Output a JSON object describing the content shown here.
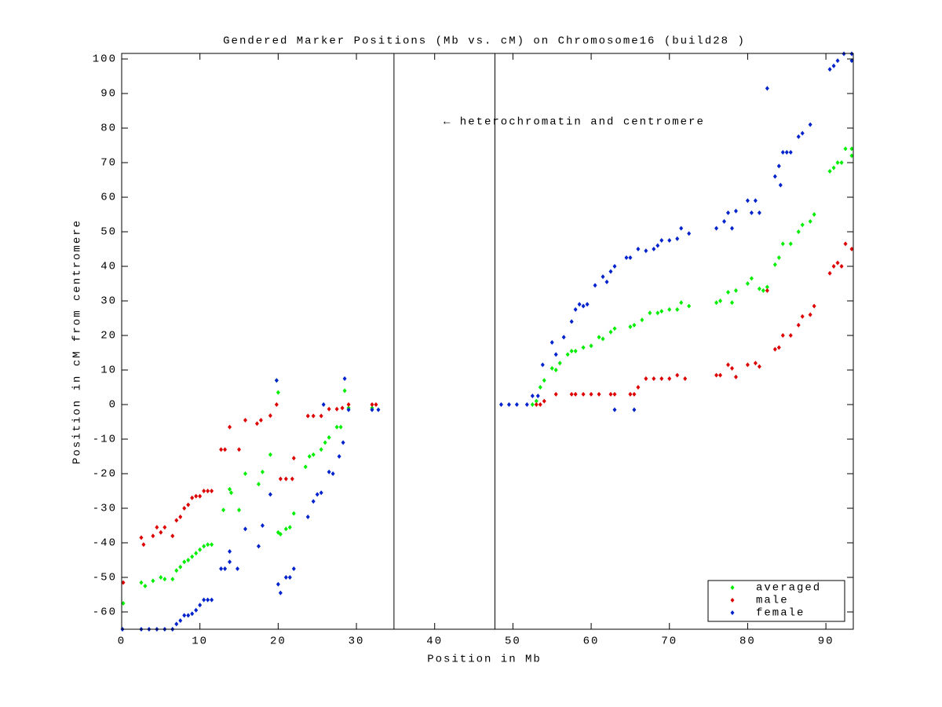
{
  "chart_data": {
    "type": "scatter",
    "title": "Gendered Marker Positions (Mb vs. cM) on Chromosome16 (build28 )",
    "xlabel": "Position in Mb",
    "ylabel": "Position in cM from centromere",
    "annotation": "← heterochromatin and centromere",
    "vlines": [
      34.8,
      47.7
    ],
    "xlim": [
      0,
      93.5
    ],
    "ylim": [
      -65,
      101.6
    ],
    "xticks": [
      0,
      10,
      20,
      30,
      40,
      50,
      60,
      70,
      80,
      90
    ],
    "yticks": [
      -60,
      -50,
      -40,
      -30,
      -20,
      -10,
      0,
      10,
      20,
      30,
      40,
      50,
      60,
      70,
      80,
      90,
      100
    ],
    "legend": "lower right",
    "series": [
      {
        "name": "averaged",
        "color": "#00ee00",
        "x": [
          0.2,
          2.5,
          3,
          4,
          5,
          5.5,
          6.5,
          7,
          7.5,
          8,
          8.5,
          9,
          9.5,
          10,
          10.5,
          11,
          11.5,
          13,
          13.8,
          14,
          15,
          15.8,
          17.5,
          18,
          19,
          19.8,
          20,
          20,
          20.3,
          21,
          21.5,
          22,
          23.5,
          24,
          24.5,
          25.5,
          26,
          26.5,
          27.5,
          28,
          28.5,
          29,
          32,
          52.5,
          53,
          53.5,
          54,
          55,
          55.5,
          56,
          57,
          57.5,
          58,
          59,
          60,
          61,
          61.5,
          62.5,
          63,
          65,
          65.5,
          66.5,
          67.5,
          68.5,
          69,
          70,
          71,
          71.5,
          72.5,
          76,
          76.5,
          77.5,
          78,
          78.5,
          80,
          80.5,
          81.5,
          82,
          82.5,
          83.5,
          84,
          84.5,
          85.5,
          86.5,
          87,
          88,
          88.5,
          90.5,
          91,
          91.5,
          92,
          92.5,
          93.3,
          93.3
        ],
        "values": [
          -57.5,
          -51.5,
          -52.5,
          -51,
          -50,
          -50.5,
          -50.5,
          -48,
          -47,
          -45.5,
          -45,
          -44,
          -43,
          -42,
          -41,
          -40.5,
          -40.5,
          -30.5,
          -24.5,
          -25.5,
          -30.5,
          -20,
          -23,
          -19.5,
          -14.5,
          7,
          3.5,
          -37,
          -37.5,
          -36,
          -35.5,
          -31.5,
          -18,
          -15,
          -14.5,
          -13,
          -11,
          -9.5,
          -6.5,
          -6.5,
          4,
          -1,
          -1,
          0,
          1,
          5,
          7,
          10.5,
          10,
          12,
          14.5,
          15.5,
          15.5,
          16.5,
          17,
          19.5,
          19,
          21,
          22,
          22.5,
          23,
          24.5,
          26.5,
          26.5,
          27,
          27.5,
          27.5,
          29.5,
          28.5,
          29.5,
          30,
          32.5,
          29.5,
          33,
          35,
          36.5,
          33.5,
          33,
          34,
          40.5,
          42.5,
          46.5,
          46.5,
          50,
          52,
          53,
          55,
          67.5,
          68.5,
          70,
          70,
          74,
          74,
          72
        ]
      },
      {
        "name": "male",
        "color": "#dd0000",
        "x": [
          0.2,
          2.5,
          2.8,
          4,
          4.5,
          5,
          5.5,
          6.5,
          7,
          7.5,
          8,
          8.5,
          9,
          9.5,
          10,
          10.5,
          11,
          11.5,
          12.7,
          13.2,
          13.8,
          15,
          15.8,
          17.3,
          17.8,
          19,
          19.8,
          20.3,
          21,
          21.8,
          22,
          23.8,
          24.5,
          25.5,
          26.5,
          27.5,
          28.2,
          29,
          32,
          32.5,
          53,
          53.5,
          54,
          55.5,
          57.5,
          58,
          59,
          60,
          61,
          62.5,
          63,
          65,
          65.5,
          66,
          67,
          68,
          69,
          70,
          71,
          72,
          76,
          76.5,
          77.5,
          78,
          78.5,
          80,
          81,
          81.5,
          82.5,
          83.5,
          84,
          84.5,
          85.5,
          86.5,
          87,
          88,
          88.5,
          90.5,
          91,
          91.5,
          92,
          92.5,
          93.3
        ],
        "values": [
          -51.5,
          -38.5,
          -40.5,
          -38,
          -35.5,
          -37,
          -35.5,
          -38,
          -33.5,
          -32.5,
          -30,
          -29,
          -27,
          -26.5,
          -26.5,
          -25,
          -25,
          -25,
          -13,
          -13,
          -6.5,
          -13,
          -4.5,
          -5.5,
          -4.5,
          -3.2,
          0,
          -21.5,
          -21.5,
          -21.5,
          -15.5,
          -3.3,
          -3.3,
          -3.3,
          -1.3,
          -1.3,
          -1,
          0,
          0,
          0,
          0,
          0,
          1,
          3,
          3,
          3,
          3,
          3,
          3,
          3,
          3,
          3,
          3,
          5,
          7.5,
          7.5,
          7.5,
          7.5,
          8.5,
          7.5,
          8.5,
          8.5,
          11.5,
          10.5,
          8,
          11.5,
          12,
          11,
          33,
          16,
          16.5,
          20,
          20,
          23,
          25.5,
          26,
          28.5,
          38,
          40,
          41,
          40,
          46.5,
          45
        ]
      },
      {
        "name": "female",
        "color": "#0022cc",
        "x": [
          0.1,
          2.5,
          3.5,
          4.5,
          5.5,
          6.5,
          7,
          7.5,
          8,
          8.5,
          9,
          9.5,
          10,
          10.5,
          11,
          11.5,
          12.7,
          13.2,
          13.8,
          13.8,
          14.8,
          15.8,
          17.5,
          18,
          19,
          19.8,
          20,
          20.3,
          21,
          21.5,
          22,
          23.8,
          24.5,
          25,
          25.5,
          25.8,
          26.5,
          27,
          27.8,
          28.3,
          28.5,
          29,
          32,
          32.8,
          48.5,
          49.5,
          50.5,
          51.8,
          52.5,
          53.2,
          53.8,
          55,
          55.5,
          56.5,
          57.5,
          58,
          58.5,
          59,
          59.5,
          60.5,
          61.5,
          62,
          62.5,
          63,
          63,
          64.5,
          65,
          65.5,
          66,
          67,
          68,
          68.5,
          69,
          70,
          71,
          71.5,
          72.5,
          76,
          77,
          77.5,
          78,
          78.5,
          80,
          80.5,
          81,
          81.5,
          82.5,
          83.5,
          84,
          84.2,
          84.5,
          85,
          85.5,
          86.5,
          87,
          88,
          90.5,
          91,
          91.5,
          92.3,
          93.3,
          93.3
        ],
        "values": [
          -65,
          -65,
          -65,
          -65,
          -65,
          -65,
          -63.5,
          -62.5,
          -61,
          -61,
          -60.5,
          -59.5,
          -58,
          -56.5,
          -56.5,
          -56.5,
          -47.5,
          -47.5,
          -42.5,
          -45.5,
          -47.5,
          -36,
          -41,
          -35,
          -26,
          7,
          -52,
          -54.5,
          -50,
          -50,
          -47.5,
          -32.5,
          -28,
          -26,
          -25.5,
          0,
          -19.5,
          -20,
          -15,
          -11,
          7.5,
          -1.5,
          -1.5,
          -1.5,
          0,
          0,
          0,
          0,
          2.5,
          2.5,
          11.5,
          18,
          14.5,
          19.5,
          24,
          27.5,
          29,
          28.5,
          29,
          34.5,
          37,
          35.5,
          38.5,
          40,
          -1.5,
          42.5,
          42.5,
          -1.5,
          45,
          44.5,
          45,
          46,
          47.5,
          47.5,
          48,
          51,
          49.5,
          51,
          53,
          55.5,
          51,
          56,
          59,
          55.5,
          59,
          55.5,
          91.5,
          66,
          69,
          63.5,
          73,
          73,
          73,
          77.5,
          78.5,
          81,
          97,
          98,
          99.5,
          101.5,
          101.5,
          99.5
        ]
      }
    ]
  }
}
